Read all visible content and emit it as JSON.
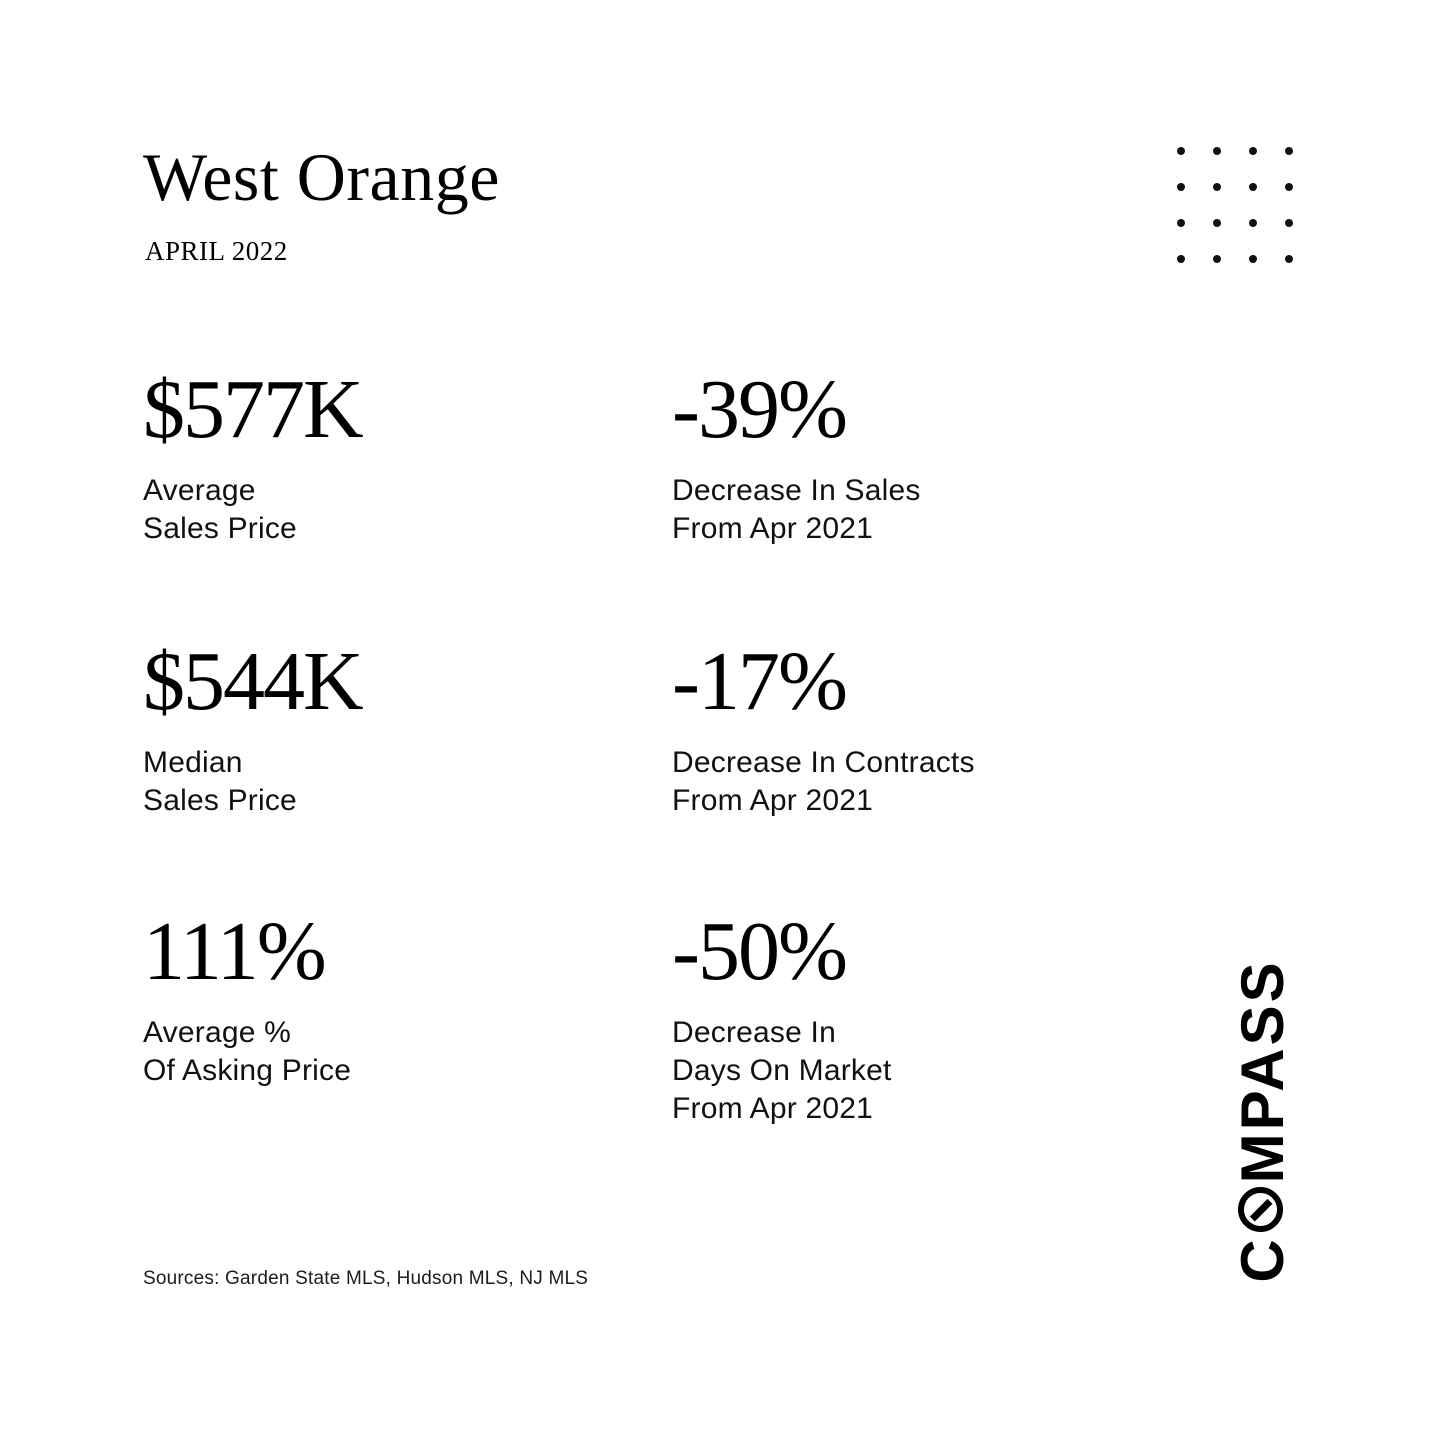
{
  "header": {
    "title": "West Orange",
    "period": "APRIL 2022"
  },
  "stats": [
    {
      "id": "average-sales-price",
      "value": "$577K",
      "label_lines": [
        "Average",
        "Sales Price"
      ]
    },
    {
      "id": "sales-change",
      "value": "-39%",
      "label_lines": [
        "Decrease In Sales",
        "From Apr 2021"
      ]
    },
    {
      "id": "median-sales-price",
      "value": "$544K",
      "label_lines": [
        "Median",
        "Sales Price"
      ]
    },
    {
      "id": "contracts-change",
      "value": "-17%",
      "label_lines": [
        "Decrease In Contracts",
        "From Apr 2021"
      ]
    },
    {
      "id": "asking-price-ratio",
      "value": "111%",
      "label_lines": [
        "Average %",
        "Of Asking Price"
      ]
    },
    {
      "id": "days-on-market-change",
      "value": "-50%",
      "label_lines": [
        "Decrease In",
        "Days On Market",
        "From Apr 2021"
      ]
    }
  ],
  "footer": {
    "sources": "Sources: Garden State MLS, Hudson MLS, NJ MLS"
  },
  "brand": {
    "name": "COMPASS",
    "o_icon": "compass-needle-o"
  },
  "decor": {
    "dot_grid": {
      "rows": 4,
      "cols": 4
    }
  },
  "colors": {
    "background": "#ffffff",
    "text": "#000000",
    "label_text": "#111111"
  }
}
